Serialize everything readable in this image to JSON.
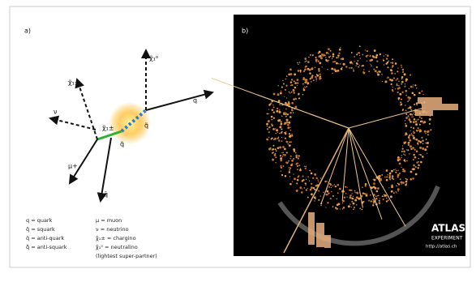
{
  "panel_a": {
    "label": "a)",
    "particles": {
      "neutralino_top": "χ̃₁⁰",
      "chargino_left": "χ̃₁±",
      "neutrino": "ν",
      "chargino_vertex": "χ̃₁±",
      "squark_lower": "q̃",
      "squark_right": "q̃",
      "quark": "q",
      "muon": "μ+",
      "antiquark": "q̄"
    },
    "legend": [
      [
        "q = quark",
        "μ = muon"
      ],
      [
        "q̃ = squark",
        "ν = neutrino"
      ],
      [
        "q̄ = anti-quark",
        "χ̃₁± = chargino"
      ],
      [
        "q̃̄ = anti-squark",
        "χ̃₁⁰ = neutralino"
      ],
      [
        "",
        "(lightest super-partner)"
      ]
    ]
  },
  "panel_b": {
    "label": "b)",
    "logo": {
      "name": "ATLAS",
      "subtitle": "EXPERIMENT",
      "url": "http://atlas.ch"
    }
  }
}
